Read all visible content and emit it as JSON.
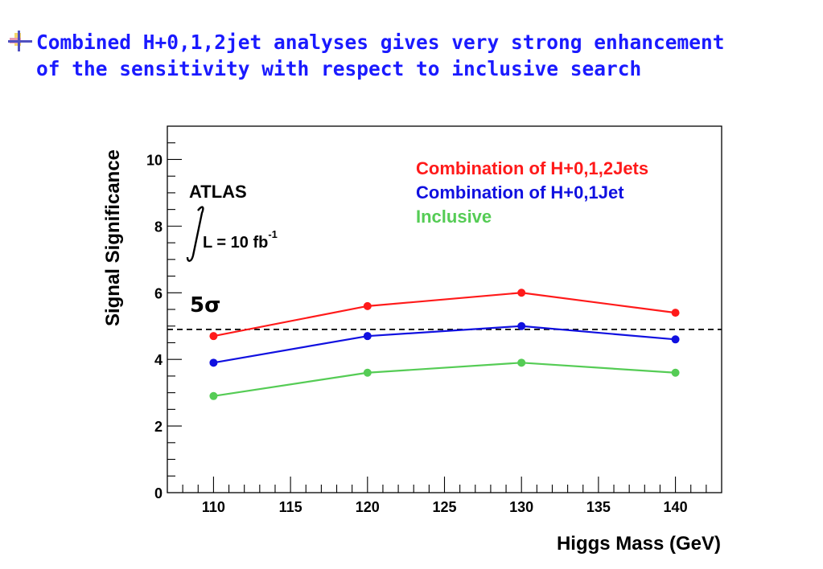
{
  "slide": {
    "headline": "Combined H+0,1,2jet analyses gives very strong enhancement\nof the sensitivity with respect to inclusive search"
  },
  "chart_data": {
    "type": "line",
    "xlabel": "Higgs Mass (GeV)",
    "ylabel": "Signal Significance",
    "xlim": [
      107,
      143
    ],
    "ylim": [
      0,
      11
    ],
    "x_ticks": [
      110,
      115,
      120,
      125,
      130,
      135,
      140
    ],
    "y_ticks": [
      0,
      2,
      4,
      6,
      8,
      10
    ],
    "x": [
      110,
      120,
      130,
      140
    ],
    "series": [
      {
        "name": "Combination of H+0,1,2Jets",
        "color": "#ff1a1a",
        "values": [
          4.7,
          5.6,
          6.0,
          5.4
        ]
      },
      {
        "name": "Combination of H+0,1Jet",
        "color": "#1010e0",
        "values": [
          3.9,
          4.7,
          5.0,
          4.6
        ]
      },
      {
        "name": "Inclusive",
        "color": "#55cc55",
        "values": [
          2.9,
          3.6,
          3.9,
          3.6
        ]
      }
    ],
    "reference_line": {
      "y": 4.9,
      "label": "5σ",
      "style": "dashed"
    },
    "annotation": {
      "experiment": "ATLAS",
      "lumi_text": "L = 10 fb",
      "lumi_exp": "-1"
    },
    "legend_position": "top-right",
    "grid": false
  }
}
